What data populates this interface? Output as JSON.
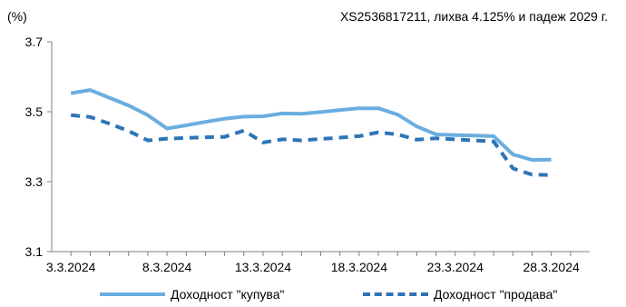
{
  "chart_data": {
    "type": "line",
    "title": "XS2536817211, лихва 4.125% и падеж 2029 г.",
    "ylabel": "(%)",
    "xlabel": "",
    "ylim": [
      3.1,
      3.7
    ],
    "yticks": [
      "3.1",
      "3.3",
      "3.5",
      "3.7"
    ],
    "ytick_values": [
      3.1,
      3.3,
      3.5,
      3.7
    ],
    "xtick_labels": [
      "3.3.2024",
      "8.3.2024",
      "13.3.2024",
      "18.3.2024",
      "23.3.2024",
      "28.3.2024"
    ],
    "xtick_days": [
      3,
      8,
      13,
      18,
      23,
      28
    ],
    "x_days": [
      3,
      4,
      5,
      6,
      7,
      8,
      9,
      10,
      11,
      12,
      13,
      14,
      15,
      16,
      17,
      18,
      19,
      20,
      21,
      22,
      23,
      24,
      25,
      26,
      27,
      28,
      29
    ],
    "legend_position": "bottom",
    "grid": false,
    "series": [
      {
        "name": "Доходност \"купува\"",
        "color": "#6aaee0",
        "style": "solid",
        "values": [
          3.553,
          3.562,
          3.54,
          3.518,
          3.49,
          3.452,
          3.461,
          3.471,
          3.48,
          3.486,
          3.487,
          3.495,
          3.494,
          3.499,
          3.505,
          3.51,
          3.51,
          3.492,
          3.458,
          3.435,
          3.433,
          3.432,
          3.43,
          3.378,
          3.362,
          3.363,
          null
        ]
      },
      {
        "name": "Доходност \"продава\"",
        "color": "#2e75b6",
        "style": "dashed",
        "values": [
          3.49,
          3.485,
          3.466,
          3.445,
          3.418,
          3.423,
          3.425,
          3.427,
          3.428,
          3.446,
          3.412,
          3.421,
          3.418,
          3.422,
          3.426,
          3.43,
          3.441,
          3.435,
          3.42,
          3.424,
          3.421,
          3.418,
          3.415,
          3.338,
          3.32,
          3.319,
          null
        ]
      }
    ]
  }
}
